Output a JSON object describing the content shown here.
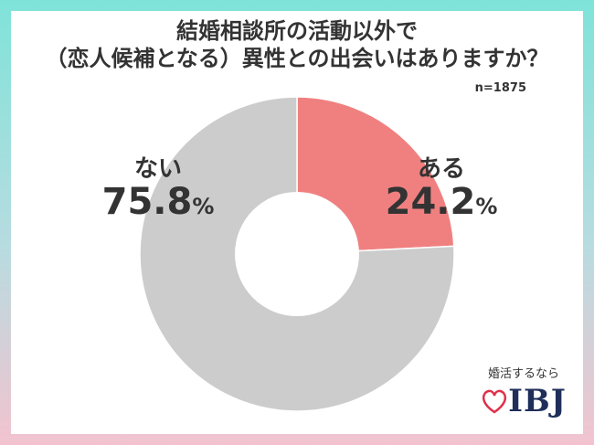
{
  "chart_data": {
    "type": "pie",
    "title_line1": "結婚相談所の活動以外で",
    "title_line2": "（恋人候補となる）異性との出会いはありますか？",
    "sample_size": "n=1875",
    "slices": [
      {
        "label": "ある",
        "value": 24.2,
        "color": "#f08080"
      },
      {
        "label": "ない",
        "value": 75.8,
        "color": "#cccccc"
      }
    ],
    "unit": "%"
  },
  "brand": {
    "tagline": "婚活するなら",
    "logo": "IBJ",
    "logo_icon": "heart-icon",
    "logo_color": "#1f2f5a",
    "heart_color": "#e0304a"
  }
}
